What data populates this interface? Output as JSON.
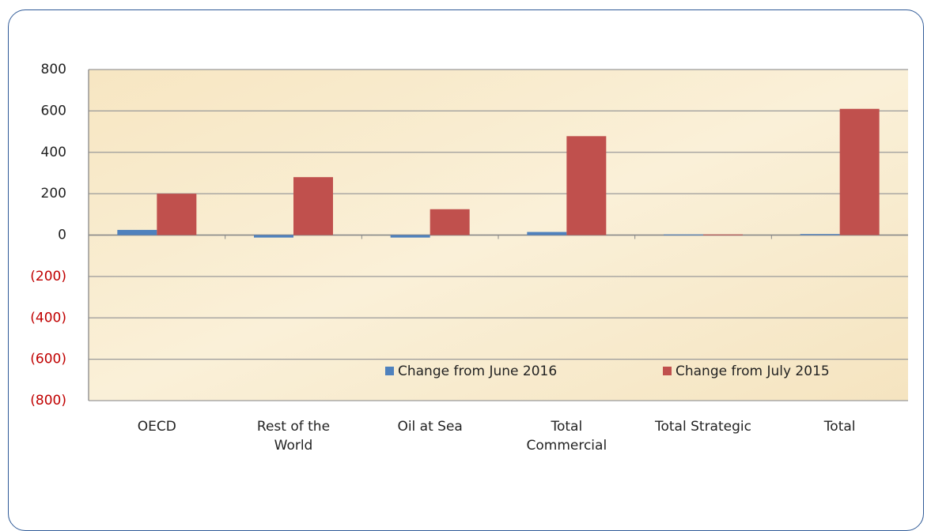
{
  "chart_data": {
    "type": "bar",
    "categories": [
      "OECD",
      "Rest of the\nWorld",
      "Oil at Sea",
      "Total\nCommercial",
      "Total Strategic",
      "Total"
    ],
    "series": [
      {
        "name": "Change from June 2016",
        "color": "#4f81bd",
        "values": [
          25,
          -12,
          -12,
          15,
          3,
          5
        ]
      },
      {
        "name": "Change from July 2015",
        "color": "#c0504d",
        "values": [
          200,
          280,
          125,
          478,
          3,
          610
        ]
      }
    ],
    "ylim": [
      -800,
      800
    ],
    "yticks": [
      {
        "value": -800,
        "label": "(800)"
      },
      {
        "value": -600,
        "label": "(600)"
      },
      {
        "value": -400,
        "label": "(400)"
      },
      {
        "value": -200,
        "label": "(200)"
      },
      0,
      200,
      400,
      600,
      800
    ],
    "grid": true,
    "negative_label_color": "#c00000",
    "legend": "bottom-right"
  }
}
